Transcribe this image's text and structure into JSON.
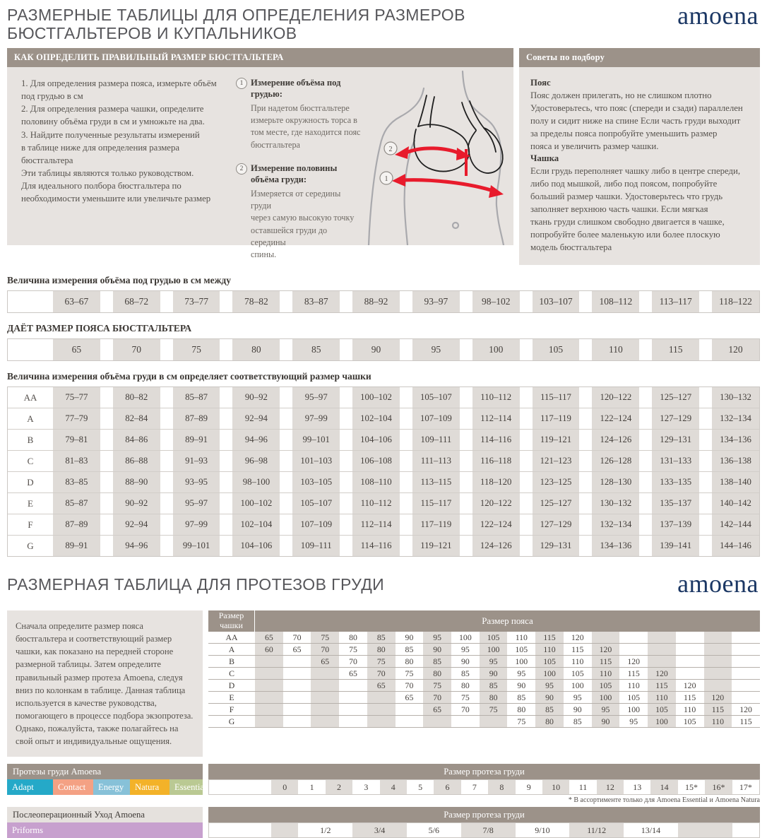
{
  "page": {
    "title_line1": "РАЗМЕРНЫЕ ТАБЛИЦЫ ДЛЯ ОПРЕДЕЛЕНИЯ РАЗМЕРОВ",
    "title_line2": "БЮСТГАЛЬТЕРОВ И КУПАЛЬНИКОВ",
    "logo": "amoena",
    "section2_title": "РАЗМЕРНАЯ ТАБЛИЦА ДЛЯ ПРОТЕЗОВ ГРУДИ",
    "brand_navy": "#1b3764",
    "bar_taupe": "#9c9289",
    "panel_gray": "#e7e3e0",
    "cell_gray": "#dfdbd7",
    "arrow_red": "#e81b2c"
  },
  "howto": {
    "header": "КАК ОПРЕДЕЛИТЬ ПРАВИЛЬНЫЙ РАЗМЕР БЮСТГАЛЬТЕРА",
    "steps": "1. Для определения размера пояса, измерьте объём\nпод грудью в см\n2.  Для определения размера чашки, определите\nполовину объёма груди в см и умножьте на два.\n3.  Найдите полученные результаты измерений\nв таблице ниже для определения размера\nбюстгальтера\nЭти таблицы являются только руководством.\nДля идеального полбора бюстгальтера по\nнеобходимости уменьшите или увеличьте размер",
    "m1_num": "1",
    "m1_title": "Измерение объёма под грудью:",
    "m1_text": "При надетом бюстгальтере\nизмерьте окружность торса в\nтом месте, где находится пояс\nбюстгальтера",
    "m2_num": "2",
    "m2_title": "Измерение половины объёма груди:",
    "m2_text": "Измеряется от середины груди\nчерез самую высокую точку\nоставшейся груди до середины\nспины.",
    "fig_label_1": "1",
    "fig_label_2": "2"
  },
  "tips": {
    "header": "Советы по подбору",
    "belt_title": "Пояс",
    "belt_text": "Пояс должен прилегать, но не слишком плотно\nУдостоверьтесь, что пояс (спереди и сзади) параллелен\nполу и сидит ниже на спине Если часть груди выходит\nза пределы пояса попробуйте уменьшить размер\nпояса и увеличить размер чашки.",
    "cup_title": "Чашка",
    "cup_text": "Если грудь переполняет чашку либо в центре спереди,\nлибо под мышкой, либо под поясом, попробуйте\nбольший размер чашки. Удостоверьтесь что грудь\nзаполняет верхнюю часть чашки. Если мягкая\nткань груди слишком свободно двигается в чашке,\nпопробуйте более маленькую или более плоскую\nмодель бюстгальтера"
  },
  "underbust": {
    "label": "Величина измерения объёма под грудью в см между",
    "ranges": [
      "63–67",
      "68–72",
      "73–77",
      "78–82",
      "83–87",
      "88–92",
      "93–97",
      "98–102",
      "103–107",
      "108–112",
      "113–117",
      "118–122"
    ]
  },
  "beltsize": {
    "label": "ДАЁТ РАЗМЕР ПОЯСА БЮСТГАЛЬТЕРА",
    "values": [
      "65",
      "70",
      "75",
      "80",
      "85",
      "90",
      "95",
      "100",
      "105",
      "110",
      "115",
      "120"
    ]
  },
  "cup_table": {
    "label": "Величина измерения объёма груди в см определяет соответствующий размер чашки",
    "rows": [
      {
        "cup": "AA",
        "values": [
          "75–77",
          "80–82",
          "85–87",
          "90–92",
          "95–97",
          "100–102",
          "105–107",
          "110–112",
          "115–117",
          "120–122",
          "125–127",
          "130–132"
        ]
      },
      {
        "cup": "A",
        "values": [
          "77–79",
          "82–84",
          "87–89",
          "92–94",
          "97–99",
          "102–104",
          "107–109",
          "112–114",
          "117–119",
          "122–124",
          "127–129",
          "132–134"
        ]
      },
      {
        "cup": "B",
        "values": [
          "79–81",
          "84–86",
          "89–91",
          "94–96",
          "99–101",
          "104–106",
          "109–111",
          "114–116",
          "119–121",
          "124–126",
          "129–131",
          "134–136"
        ]
      },
      {
        "cup": "C",
        "values": [
          "81–83",
          "86–88",
          "91–93",
          "96–98",
          "101–103",
          "106–108",
          "111–113",
          "116–118",
          "121–123",
          "126–128",
          "131–133",
          "136–138"
        ]
      },
      {
        "cup": "D",
        "values": [
          "83–85",
          "88–90",
          "93–95",
          "98–100",
          "103–105",
          "108–110",
          "113–115",
          "118–120",
          "123–125",
          "128–130",
          "133–135",
          "138–140"
        ]
      },
      {
        "cup": "E",
        "values": [
          "85–87",
          "90–92",
          "95–97",
          "100–102",
          "105–107",
          "110–112",
          "115–117",
          "120–122",
          "125–127",
          "130–132",
          "135–137",
          "140–142"
        ]
      },
      {
        "cup": "F",
        "values": [
          "87–89",
          "92–94",
          "97–99",
          "102–104",
          "107–109",
          "112–114",
          "117–119",
          "122–124",
          "127–129",
          "132–134",
          "137–139",
          "142–144"
        ]
      },
      {
        "cup": "G",
        "values": [
          "89–91",
          "94–96",
          "99–101",
          "104–106",
          "109–111",
          "114–116",
          "119–121",
          "124–126",
          "129–131",
          "134–136",
          "139–141",
          "144–146"
        ]
      }
    ]
  },
  "fit_intro": "Сначала определите размер пояса\nбюстгальтера и соответствующий размер\nчашки, как показано на передней стороне\nразмерной таблицы. Затем определите\nправильный размер протеза Amoena, следуя\nвниз по колонкам в таблице. Данная таблица\nиспользуется в качестве руководства,\nпомогающего в процессе подбора экзопротеза.\nОднако, пожалуйста, также полагайтесь на\nсвой опыт и индивидуальные ощущения.",
  "fit_table": {
    "cup_header": "Размер чашки",
    "belt_header": "Размер пояса",
    "rows": [
      {
        "cup": "AA",
        "values": [
          "65",
          "70",
          "75",
          "80",
          "85",
          "90",
          "95",
          "100",
          "105",
          "110",
          "115",
          "120",
          "",
          "",
          "",
          "",
          "",
          ""
        ]
      },
      {
        "cup": "A",
        "values": [
          "60",
          "65",
          "70",
          "75",
          "80",
          "85",
          "90",
          "95",
          "100",
          "105",
          "110",
          "115",
          "120",
          "",
          "",
          "",
          "",
          ""
        ]
      },
      {
        "cup": "B",
        "values": [
          "",
          "",
          "65",
          "70",
          "75",
          "80",
          "85",
          "90",
          "95",
          "100",
          "105",
          "110",
          "115",
          "120",
          "",
          "",
          "",
          ""
        ]
      },
      {
        "cup": "C",
        "values": [
          "",
          "",
          "",
          "65",
          "70",
          "75",
          "80",
          "85",
          "90",
          "95",
          "100",
          "105",
          "110",
          "115",
          "120",
          "",
          "",
          ""
        ]
      },
      {
        "cup": "D",
        "values": [
          "",
          "",
          "",
          "",
          "65",
          "70",
          "75",
          "80",
          "85",
          "90",
          "95",
          "100",
          "105",
          "110",
          "115",
          "120",
          "",
          ""
        ]
      },
      {
        "cup": "E",
        "values": [
          "",
          "",
          "",
          "",
          "",
          "65",
          "70",
          "75",
          "80",
          "85",
          "90",
          "95",
          "100",
          "105",
          "110",
          "115",
          "120",
          ""
        ]
      },
      {
        "cup": "F",
        "values": [
          "",
          "",
          "",
          "",
          "",
          "",
          "65",
          "70",
          "75",
          "80",
          "85",
          "90",
          "95",
          "100",
          "105",
          "110",
          "115",
          "120"
        ]
      },
      {
        "cup": "G",
        "values": [
          "",
          "",
          "",
          "",
          "",
          "",
          "",
          "",
          "",
          "75",
          "80",
          "85",
          "90",
          "95",
          "100",
          "105",
          "110",
          "115"
        ]
      }
    ]
  },
  "brands": {
    "header": "Протезы груди Amoena",
    "chips": [
      {
        "label": "Adapt",
        "color": "#25a9c8"
      },
      {
        "label": "Contact",
        "color": "#f4a184"
      },
      {
        "label": "Energy",
        "color": "#87c1d8"
      },
      {
        "label": "Natura",
        "color": "#f3b229"
      },
      {
        "label": "Essential",
        "color": "#bac993"
      }
    ]
  },
  "prosthesis_sizes": {
    "header": "Размер протеза груди",
    "values": [
      "0",
      "1",
      "2",
      "3",
      "4",
      "5",
      "6",
      "7",
      "8",
      "9",
      "10",
      "11",
      "12",
      "13",
      "14",
      "15*",
      "16*",
      "17*"
    ],
    "footnote": "* В ассортименте только для  Amoena Essential и Amoena Natura"
  },
  "postop": {
    "header": "Послеоперационный Уход Amoena",
    "chip": {
      "label": "Priforms",
      "color": "#c7a0ce"
    },
    "sizes_header": "Размер протеза груди",
    "values": [
      "",
      "1/2",
      "3/4",
      "5/6",
      "7/8",
      "9/10",
      "11/12",
      "13/14",
      "",
      ""
    ]
  }
}
